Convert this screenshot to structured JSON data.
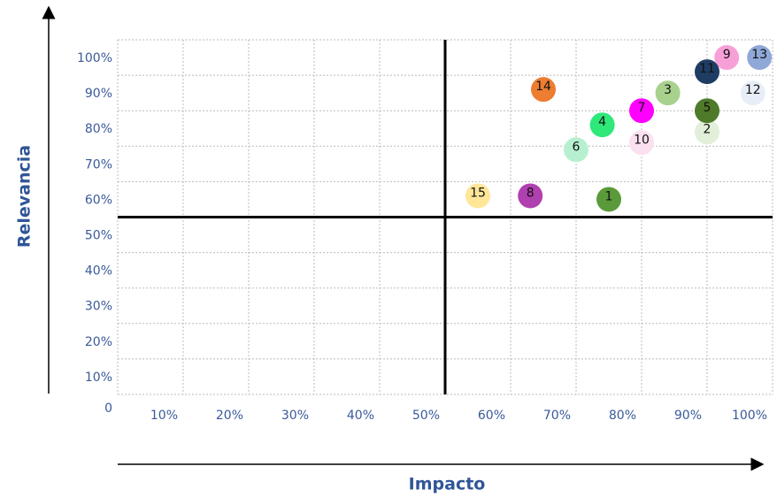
{
  "chart_data": {
    "type": "scatter",
    "xlabel": "Impacto",
    "ylabel": "Relevancia",
    "labels": [
      "1",
      "2",
      "3",
      "4",
      "5",
      "6",
      "7",
      "8",
      "9",
      "10",
      "11",
      "12",
      "13",
      "14",
      "15"
    ],
    "x": [
      75,
      90,
      84,
      74,
      90,
      70,
      80,
      63,
      93,
      80,
      90,
      97,
      98,
      65,
      55
    ],
    "y": [
      55,
      74,
      85,
      76,
      80,
      69,
      80,
      56,
      95,
      71,
      91,
      85,
      95,
      86,
      56
    ],
    "colors": [
      "#5a9a3a",
      "#e2efd9",
      "#a9d18e",
      "#2ee87a",
      "#4e7a2a",
      "#b7f0d0",
      "#ff00ff",
      "#b040b0",
      "#f7a0d8",
      "#fbe0f0",
      "#1f3d63",
      "#e8eef8",
      "#8fa8d8",
      "#ed7d31",
      "#ffe699"
    ],
    "xlim": [
      0,
      100
    ],
    "ylim": [
      0,
      100
    ],
    "xticks": [
      {
        "value": 10,
        "label": "10%"
      },
      {
        "value": 20,
        "label": "20%"
      },
      {
        "value": 30,
        "label": "30%"
      },
      {
        "value": 40,
        "label": "40%"
      },
      {
        "value": 50,
        "label": "50%"
      },
      {
        "value": 60,
        "label": "60%"
      },
      {
        "value": 70,
        "label": "70%"
      },
      {
        "value": 80,
        "label": "80%"
      },
      {
        "value": 90,
        "label": "90%"
      },
      {
        "value": 100,
        "label": "100%"
      }
    ],
    "yticks": [
      0,
      {
        "value": 10,
        "label": "10%"
      },
      {
        "value": 20,
        "label": "20%"
      },
      {
        "value": 30,
        "label": "30%"
      },
      {
        "value": 40,
        "label": "40%"
      },
      {
        "value": 50,
        "label": "50%"
      },
      {
        "value": 60,
        "label": "60%"
      },
      {
        "value": 70,
        "label": "70%"
      },
      {
        "value": 80,
        "label": "80%"
      },
      {
        "value": 90,
        "label": "90%"
      },
      {
        "value": 100,
        "label": "100%"
      }
    ],
    "xline": 50,
    "yline": 50,
    "grid": true
  }
}
